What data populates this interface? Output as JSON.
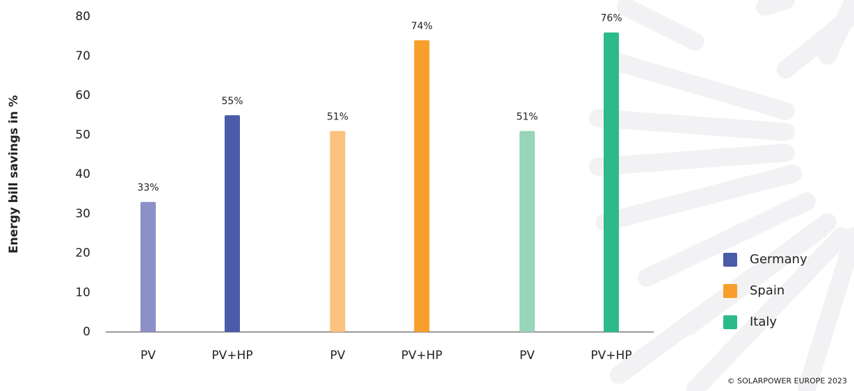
{
  "chart_data": {
    "type": "grouped-bar",
    "ylabel": "Energy bill savings in %",
    "ylim": [
      0,
      80
    ],
    "yticks": [
      0,
      10,
      20,
      30,
      40,
      50,
      60,
      70,
      80
    ],
    "grid": false,
    "legend_position": "right",
    "footer": "© SOLARPOWER EUROPE 2023",
    "groups": [
      {
        "name": "Germany",
        "color": "#4a5ba8",
        "bar_colors": [
          "#8b90c7",
          "#4a5ba8"
        ],
        "categories": [
          "PV",
          "PV+HP"
        ],
        "values": [
          33,
          55
        ],
        "value_labels": [
          "33%",
          "55%"
        ]
      },
      {
        "name": "Spain",
        "color": "#f79f2a",
        "bar_colors": [
          "#fbc37f",
          "#f79f2a"
        ],
        "categories": [
          "PV",
          "PV+HP"
        ],
        "values": [
          51,
          74
        ],
        "value_labels": [
          "51%",
          "74%"
        ]
      },
      {
        "name": "Italy",
        "color": "#2dba89",
        "bar_colors": [
          "#98d4b8",
          "#2dba89"
        ],
        "categories": [
          "PV",
          "PV+HP"
        ],
        "values": [
          51,
          76
        ],
        "value_labels": [
          "51%",
          "76%"
        ]
      }
    ]
  }
}
